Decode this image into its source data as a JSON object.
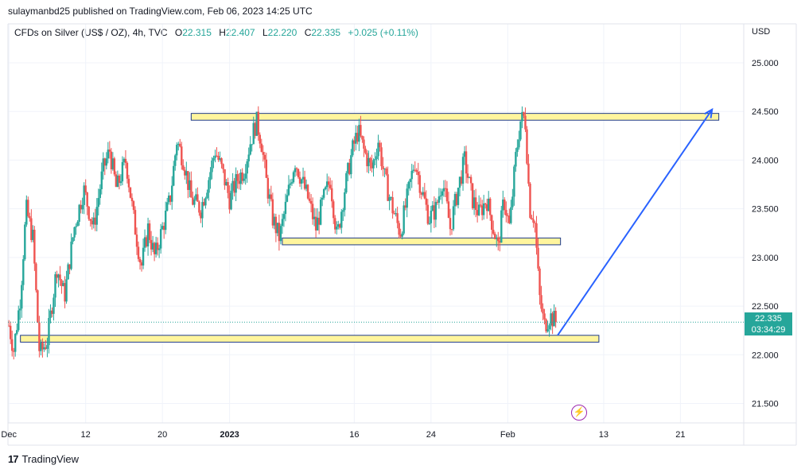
{
  "header": {
    "publisher": "sulaymanbd25 published on TradingView.com, Feb 06, 2023 14:25 UTC"
  },
  "legend": {
    "symbol": "CFDs on Silver (US$ / OZ), 4h, TVC",
    "open_label": "O",
    "open": "22.315",
    "high_label": "H",
    "high": "22.407",
    "low_label": "L",
    "low": "22.220",
    "close_label": "C",
    "close": "22.335",
    "change": "+0.025 (+0.11%)"
  },
  "currency": "USD",
  "price_badge": {
    "price": "22.335",
    "countdown": "03:34:29"
  },
  "footer": {
    "brand": "TradingView"
  },
  "colors": {
    "up": "#26a69a",
    "down": "#ef5350",
    "zone_fill": "#fff59d",
    "zone_border": "#1e3a8a",
    "arrow": "#2962ff"
  },
  "chart_data": {
    "type": "candlestick",
    "timeframe": "4h",
    "y_ticks": [
      "25.000",
      "24.500",
      "24.000",
      "23.500",
      "23.000",
      "22.500",
      "22.000",
      "21.500"
    ],
    "ylim": [
      21.3,
      25.4
    ],
    "x_ticks": [
      {
        "label": "Dec",
        "day": 4
      },
      {
        "label": "12",
        "day": 12
      },
      {
        "label": "20",
        "day": 20
      },
      {
        "label": "2023",
        "day": 27
      },
      {
        "label": "16",
        "day": 40
      },
      {
        "label": "24",
        "day": 48
      },
      {
        "label": "Feb",
        "day": 56
      },
      {
        "label": "13",
        "day": 66
      },
      {
        "label": "21",
        "day": 74
      }
    ],
    "price_path": [
      [
        4.0,
        22.3
      ],
      [
        4.5,
        22.05
      ],
      [
        5.2,
        22.6
      ],
      [
        5.8,
        23.5
      ],
      [
        6.5,
        23.2
      ],
      [
        7.2,
        22.0
      ],
      [
        8.0,
        22.15
      ],
      [
        9.0,
        22.9
      ],
      [
        9.8,
        22.6
      ],
      [
        10.8,
        23.3
      ],
      [
        11.8,
        23.7
      ],
      [
        12.8,
        23.3
      ],
      [
        13.8,
        23.9
      ],
      [
        14.5,
        24.1
      ],
      [
        15.2,
        23.7
      ],
      [
        16.2,
        24.0
      ],
      [
        17.0,
        23.4
      ],
      [
        17.8,
        22.9
      ],
      [
        18.5,
        23.3
      ],
      [
        19.2,
        23.0
      ],
      [
        20.0,
        23.3
      ],
      [
        20.8,
        23.6
      ],
      [
        21.5,
        24.2
      ],
      [
        22.2,
        24.0
      ],
      [
        23.0,
        23.6
      ],
      [
        24.0,
        23.5
      ],
      [
        24.8,
        23.8
      ],
      [
        25.5,
        24.1
      ],
      [
        26.2,
        23.9
      ],
      [
        27.0,
        23.6
      ],
      [
        27.8,
        23.8
      ],
      [
        28.5,
        23.9
      ],
      [
        29.2,
        24.2
      ],
      [
        29.8,
        24.4
      ],
      [
        30.3,
        24.2
      ],
      [
        30.8,
        23.8
      ],
      [
        31.5,
        23.4
      ],
      [
        32.2,
        23.2
      ],
      [
        33.0,
        23.6
      ],
      [
        33.8,
        24.0
      ],
      [
        34.5,
        23.8
      ],
      [
        35.2,
        23.6
      ],
      [
        36.0,
        23.3
      ],
      [
        36.8,
        23.6
      ],
      [
        37.5,
        23.8
      ],
      [
        38.2,
        23.2
      ],
      [
        39.0,
        23.7
      ],
      [
        39.8,
        24.1
      ],
      [
        40.4,
        24.3
      ],
      [
        41.0,
        24.1
      ],
      [
        41.8,
        23.9
      ],
      [
        42.5,
        24.2
      ],
      [
        43.2,
        23.8
      ],
      [
        44.0,
        23.5
      ],
      [
        44.8,
        23.25
      ],
      [
        45.5,
        23.6
      ],
      [
        46.3,
        24.0
      ],
      [
        47.0,
        23.7
      ],
      [
        47.8,
        23.4
      ],
      [
        48.5,
        23.5
      ],
      [
        49.2,
        23.8
      ],
      [
        50.0,
        23.3
      ],
      [
        50.8,
        23.7
      ],
      [
        51.5,
        24.0
      ],
      [
        52.3,
        23.6
      ],
      [
        53.0,
        23.45
      ],
      [
        53.8,
        23.6
      ],
      [
        54.5,
        23.3
      ],
      [
        55.0,
        23.1
      ],
      [
        55.6,
        23.6
      ],
      [
        56.2,
        23.3
      ],
      [
        56.8,
        24.0
      ],
      [
        57.3,
        24.4
      ],
      [
        57.8,
        24.45
      ],
      [
        58.3,
        23.5
      ],
      [
        58.8,
        23.4
      ],
      [
        59.3,
        22.6
      ],
      [
        59.8,
        22.3
      ],
      [
        60.4,
        22.4
      ],
      [
        61.0,
        22.34
      ]
    ],
    "annotations": [
      {
        "type": "zone",
        "day_start": 23.0,
        "day_end": 78.0,
        "price_top": 24.48,
        "price_bottom": 24.41
      },
      {
        "type": "zone",
        "day_start": 32.5,
        "day_end": 61.5,
        "price_top": 23.2,
        "price_bottom": 23.13
      },
      {
        "type": "zone",
        "day_start": 5.2,
        "day_end": 65.5,
        "price_top": 22.2,
        "price_bottom": 22.13
      },
      {
        "type": "arrow",
        "from_day": 61.2,
        "from_price": 22.2,
        "to_day": 77.3,
        "to_price": 24.52
      }
    ],
    "last_price": 22.335
  }
}
